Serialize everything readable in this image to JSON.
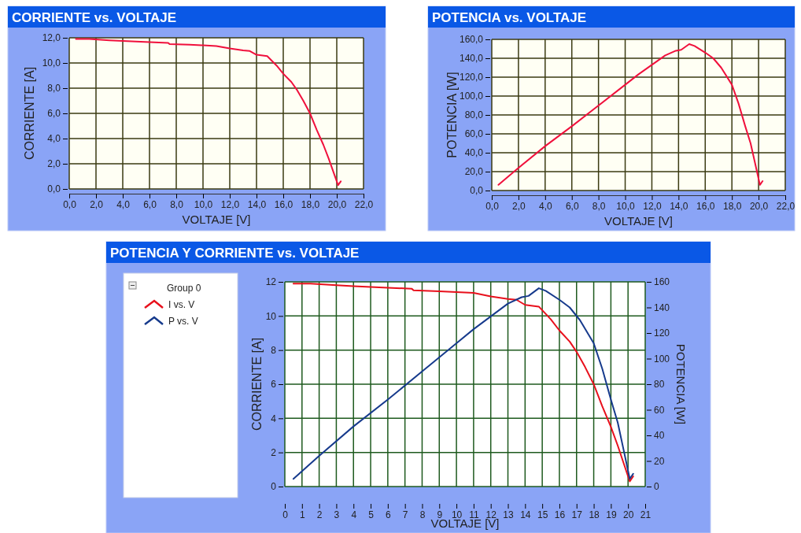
{
  "chart_data": [
    {
      "type": "line",
      "title": "CORRIENTE vs. VOLTAJE",
      "xlabel": "VOLTAJE [V]",
      "ylabel": "CORRIENTE [A]",
      "color": "#f0103c",
      "grid": true,
      "x": [
        0.5,
        1.5,
        3,
        4,
        5,
        6,
        7.4,
        7.5,
        9,
        10,
        11,
        12,
        13,
        13.5,
        14,
        14.8,
        15.5,
        16,
        16.6,
        17,
        17.5,
        18,
        18.5,
        19,
        19.4,
        19.8,
        20.1,
        20.3
      ],
      "values": [
        11.9,
        11.9,
        11.8,
        11.75,
        11.7,
        11.65,
        11.6,
        11.5,
        11.45,
        11.4,
        11.35,
        11.15,
        11.0,
        10.95,
        10.65,
        10.55,
        9.8,
        9.15,
        8.5,
        7.9,
        7.0,
        6.0,
        4.7,
        3.5,
        2.4,
        1.2,
        0.3,
        0.6
      ],
      "xlim": [
        0,
        22
      ],
      "ylim": [
        0,
        12
      ],
      "xticks": [
        {
          "value": 0,
          "label": "0,0"
        },
        {
          "value": 2,
          "label": "2,0"
        },
        {
          "value": 4,
          "label": "4,0"
        },
        {
          "value": 6,
          "label": "6,0"
        },
        {
          "value": 8,
          "label": "8,0"
        },
        {
          "value": 10,
          "label": "10,0"
        },
        {
          "value": 12,
          "label": "12,0"
        },
        {
          "value": 14,
          "label": "14,0"
        },
        {
          "value": 16,
          "label": "16,0"
        },
        {
          "value": 18,
          "label": "18,0"
        },
        {
          "value": 20,
          "label": "20,0"
        },
        {
          "value": 22,
          "label": "22,0"
        }
      ],
      "yticks": [
        {
          "value": 0,
          "label": "0,0"
        },
        {
          "value": 2,
          "label": "2,0"
        },
        {
          "value": 4,
          "label": "4,0"
        },
        {
          "value": 6,
          "label": "6,0"
        },
        {
          "value": 8,
          "label": "8,0"
        },
        {
          "value": 10,
          "label": "10,0"
        },
        {
          "value": 12,
          "label": "12,0"
        }
      ]
    },
    {
      "type": "line",
      "title": "POTENCIA vs. VOLTAJE",
      "xlabel": "VOLTAJE [V]",
      "ylabel": "POTENCIA [W]",
      "color": "#f0103c",
      "grid": true,
      "x": [
        0.5,
        2,
        4,
        6,
        8,
        10,
        11,
        12,
        13,
        13.8,
        14.2,
        14.8,
        15.2,
        16,
        16.6,
        17.2,
        18,
        18.5,
        19,
        19.4,
        19.8,
        20.1,
        20.3
      ],
      "values": [
        6,
        24,
        47,
        68,
        90,
        112,
        123,
        133,
        143,
        148,
        149,
        155,
        153,
        146,
        140,
        130,
        112,
        92,
        68,
        50,
        25,
        6,
        10
      ],
      "xlim": [
        0,
        22
      ],
      "ylim": [
        0,
        160
      ],
      "xticks": [
        {
          "value": 0,
          "label": "0,0"
        },
        {
          "value": 2,
          "label": "2,0"
        },
        {
          "value": 4,
          "label": "4,0"
        },
        {
          "value": 6,
          "label": "6,0"
        },
        {
          "value": 8,
          "label": "8,0"
        },
        {
          "value": 10,
          "label": "10,0"
        },
        {
          "value": 12,
          "label": "12,0"
        },
        {
          "value": 14,
          "label": "14,0"
        },
        {
          "value": 16,
          "label": "16,0"
        },
        {
          "value": 18,
          "label": "18,0"
        },
        {
          "value": 20,
          "label": "20,0"
        },
        {
          "value": 22,
          "label": "22,0"
        }
      ],
      "yticks": [
        {
          "value": 0,
          "label": "0,0"
        },
        {
          "value": 20,
          "label": "20,0"
        },
        {
          "value": 40,
          "label": "40,0"
        },
        {
          "value": 60,
          "label": "60,0"
        },
        {
          "value": 80,
          "label": "80,0"
        },
        {
          "value": 100,
          "label": "100,0"
        },
        {
          "value": 120,
          "label": "120,0"
        },
        {
          "value": 140,
          "label": "140,0"
        },
        {
          "value": 160,
          "label": "160,0"
        }
      ]
    },
    {
      "type": "line",
      "title": "POTENCIA Y CORRIENTE vs. VOLTAJE",
      "xlabel": "VOLTAJE [V]",
      "ylabel": "CORRIENTE [A]",
      "y2label": "POTENCIA [W]",
      "legend_title": "Group 0",
      "legend": "left",
      "grid": true,
      "xlim": [
        0,
        21
      ],
      "ylim": [
        0,
        12
      ],
      "y2lim": [
        0,
        160
      ],
      "xticks": [
        0,
        1,
        2,
        3,
        4,
        5,
        6,
        7,
        8,
        9,
        10,
        11,
        12,
        13,
        14,
        15,
        16,
        17,
        18,
        19,
        20,
        21
      ],
      "yticks": [
        0,
        2,
        4,
        6,
        8,
        10,
        12
      ],
      "y2ticks": [
        0,
        20,
        40,
        60,
        80,
        100,
        120,
        140,
        160
      ],
      "series": [
        {
          "name": "I vs. V",
          "color": "#e8101c",
          "x": [
            0.5,
            1.5,
            3,
            4,
            5,
            6,
            7.4,
            7.5,
            9,
            10,
            11,
            12,
            13,
            13.5,
            14,
            14.8,
            15.5,
            16,
            16.6,
            17,
            17.5,
            18,
            18.5,
            19,
            19.4,
            19.8,
            20.1,
            20.3
          ],
          "values": [
            11.9,
            11.9,
            11.8,
            11.75,
            11.7,
            11.65,
            11.6,
            11.5,
            11.45,
            11.4,
            11.35,
            11.15,
            11.0,
            10.95,
            10.65,
            10.55,
            9.8,
            9.15,
            8.5,
            7.9,
            7.0,
            6.0,
            4.7,
            3.5,
            2.4,
            1.2,
            0.3,
            0.6
          ]
        },
        {
          "name": "P vs. V",
          "color": "#163a8c",
          "axis": "y2",
          "x": [
            0.5,
            2,
            4,
            6,
            8,
            10,
            11,
            12,
            13,
            13.8,
            14.2,
            14.8,
            15.2,
            16,
            16.6,
            17.2,
            18,
            18.5,
            19,
            19.4,
            19.8,
            20.1,
            20.3
          ],
          "values": [
            6,
            24,
            47,
            68,
            90,
            112,
            123,
            133,
            143,
            148,
            149,
            155,
            153,
            146,
            140,
            130,
            112,
            92,
            68,
            50,
            25,
            6,
            10
          ]
        }
      ]
    }
  ]
}
